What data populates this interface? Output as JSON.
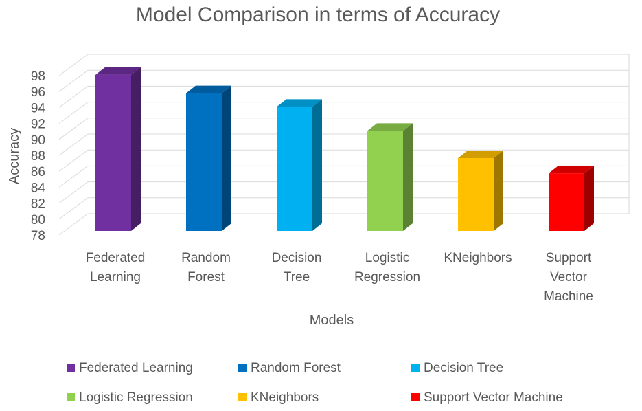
{
  "chart_data": {
    "type": "bar",
    "title": "Model Comparison in terms of Accuracy",
    "xlabel": "Models",
    "ylabel": "Accuracy",
    "ylim": [
      78,
      98
    ],
    "yticks": [
      78,
      80,
      82,
      84,
      86,
      88,
      90,
      92,
      94,
      96,
      98
    ],
    "grid": true,
    "three_d": true,
    "legend_position": "bottom",
    "categories": [
      "Federated Learning",
      "Random Forest",
      "Decision Tree",
      "Logistic Regression",
      "KNeighbors",
      "Support Vector Machine"
    ],
    "category_label_lines": [
      [
        "Federated",
        "Learning"
      ],
      [
        "Random",
        "Forest"
      ],
      [
        "Decision",
        "Tree"
      ],
      [
        "Logistic",
        "Regression"
      ],
      [
        "KNeighbors"
      ],
      [
        "Support",
        "Vector",
        "Machine"
      ]
    ],
    "values": [
      97.5,
      95.2,
      93.5,
      90.5,
      87.1,
      85.2
    ],
    "colors": [
      "#7030A0",
      "#0070C0",
      "#00B0F0",
      "#92D050",
      "#FFC000",
      "#FF0000"
    ]
  }
}
